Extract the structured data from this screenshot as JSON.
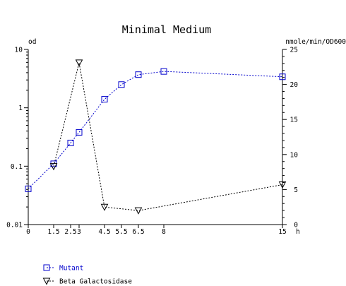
{
  "chart_data": {
    "type": "line",
    "title": "Minimal Medium",
    "xlabel": "h",
    "ylabel_left": "od",
    "ylabel_right": "nmole/min/OD600",
    "x_ticks": [
      "0",
      "1.5",
      "2.5",
      "3",
      "4.5",
      "5.5",
      "6.5",
      "8",
      "15"
    ],
    "x_tick_values": [
      0,
      1.5,
      2.5,
      3,
      4.5,
      5.5,
      6.5,
      8,
      15
    ],
    "xlim": [
      0,
      15
    ],
    "y_left": {
      "scale": "log",
      "lim": [
        0.01,
        10
      ],
      "ticks": [
        "10",
        "1",
        "0.1",
        "0.01"
      ],
      "tick_values": [
        10,
        1,
        0.1,
        0.01
      ]
    },
    "y_right": {
      "scale": "linear",
      "lim": [
        0,
        25
      ],
      "ticks": [
        "25",
        "20",
        "15",
        "10",
        "5",
        "0"
      ],
      "tick_values": [
        25,
        20,
        15,
        10,
        5,
        0
      ]
    },
    "grid": false,
    "legend_position": "bottom-left",
    "series": [
      {
        "name": "Mutant",
        "axis": "left",
        "color": "#0000cc",
        "marker": "square",
        "line": "dashed",
        "x": [
          0,
          1.5,
          2.5,
          3,
          4.5,
          5.5,
          6.5,
          8,
          15
        ],
        "y": [
          0.041,
          0.11,
          0.25,
          0.38,
          1.4,
          2.5,
          3.7,
          4.2,
          3.4
        ]
      },
      {
        "name": "Beta Galactosidase",
        "axis": "right",
        "color": "#000000",
        "marker": "triangle-down",
        "line": "dashed",
        "x": [
          1.5,
          3,
          4.5,
          6.5,
          15
        ],
        "y": [
          8.3,
          23.1,
          2.5,
          2.0,
          5.7
        ]
      }
    ]
  }
}
